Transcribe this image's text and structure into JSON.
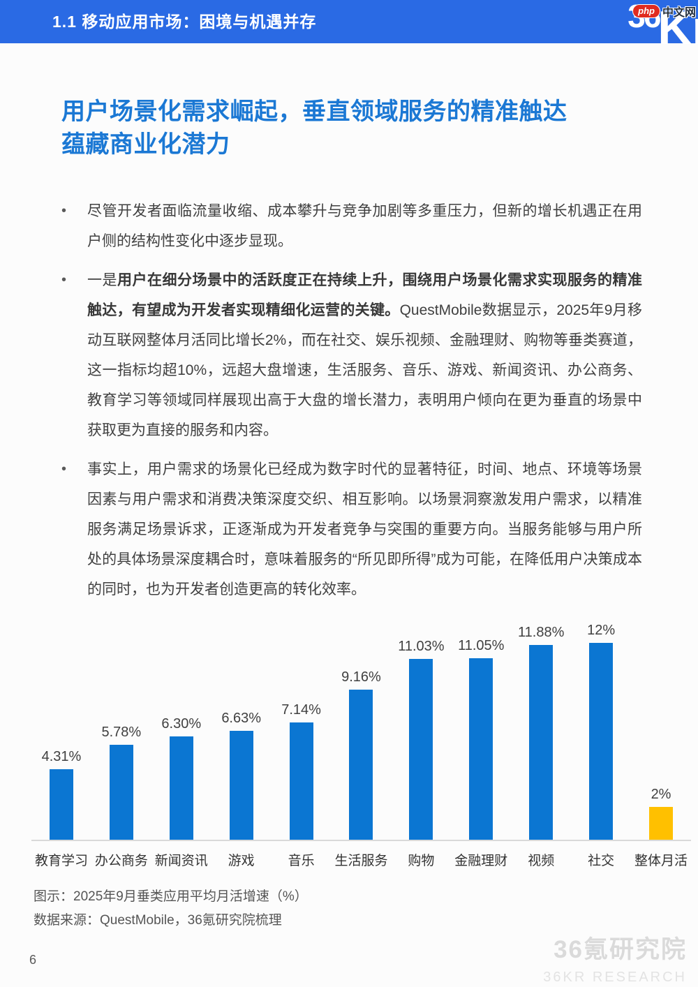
{
  "header": {
    "section_title": "1.1 移动应用市场：困境与机遇并存",
    "logo_36": "36",
    "logo_kr": "Kr"
  },
  "watermark_badge": {
    "php": "php",
    "site": "中文网"
  },
  "headline": {
    "line1": "用户场景化需求崛起，垂直领域服务的精准触达",
    "line2": "蕴藏商业化潜力"
  },
  "bullets_marker": "•",
  "bullets": [
    {
      "segments": [
        {
          "text": "尽管开发者面临流量收缩、成本攀升与竞争加剧等多重压力，但新的增长机遇正在用户侧的结构性变化中逐步显现。",
          "bold": false
        }
      ]
    },
    {
      "segments": [
        {
          "text": "一是",
          "bold": false
        },
        {
          "text": "用户在细分场景中的活跃度正在持续上升，围绕用户场景化需求实现服务的精准触达，有望成为开发者实现精细化运营的关键。",
          "bold": true
        },
        {
          "text": "QuestMobile数据显示，2025年9月移动互联网整体月活同比增长2%，而在社交、娱乐视频、金融理财、购物等垂类赛道，这一指标均超10%，远超大盘增速，生活服务、音乐、游戏、新闻资讯、办公商务、教育学习等领域同样展现出高于大盘的增长潜力，表明用户倾向在更为垂直的场景中获取更为直接的服务和内容。",
          "bold": false
        }
      ]
    },
    {
      "segments": [
        {
          "text": "事实上，用户需求的场景化已经成为数字时代的显著特征，时间、地点、环境等场景因素与用户需求和消费决策深度交织、相互影响。以场景洞察激发用户需求，以精准服务满足场景诉求，正逐渐成为开发者竞争与突围的重要方向。当服务能够与用户所处的具体场景深度耦合时，意味着服务的“所见即所得”成为可能，在降低用户决策成本的同时，也为开发者创造更高的转化效率。",
          "bold": false
        }
      ]
    }
  ],
  "chart_data": {
    "type": "bar",
    "title": "2025年9月垂类应用平均月活增速（%）",
    "categories": [
      "教育学习",
      "办公商务",
      "新闻资讯",
      "游戏",
      "音乐",
      "生活服务",
      "购物",
      "金融理财",
      "视频",
      "社交",
      "整体月活"
    ],
    "values": [
      4.31,
      5.78,
      6.3,
      6.63,
      7.14,
      9.16,
      11.03,
      11.05,
      11.88,
      12,
      2
    ],
    "value_labels": [
      "4.31%",
      "5.78%",
      "6.30%",
      "6.63%",
      "7.14%",
      "9.16%",
      "11.03%",
      "11.05%",
      "11.88%",
      "12%",
      "2%"
    ],
    "highlight_index": 10,
    "ylim": [
      0,
      12.5
    ],
    "grid": false,
    "legend": false,
    "bar_color_default": "#0b76d2",
    "bar_color_highlight": "#ffc000"
  },
  "caption": {
    "figure_label": "图示：2025年9月垂类应用平均月活增速（%）",
    "source": "数据来源：QuestMobile，36氪研究院梳理"
  },
  "footer": {
    "page_number": "6",
    "watermark_cn": "36氪研究院",
    "watermark_en": "36KR RESEARCH"
  },
  "colors": {
    "header_bg": "#2a6ae4",
    "headline_text": "#1b78d4",
    "bar_blue": "#0b76d2",
    "bar_orange": "#ffc000",
    "axis_line": "#d9d9d9",
    "body_text": "#404040"
  }
}
